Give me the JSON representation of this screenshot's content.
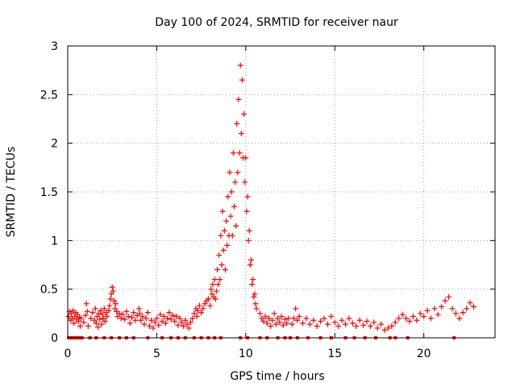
{
  "chart_data": {
    "type": "scatter",
    "title": "Day 100 of 2024, SRMTID for receiver naur",
    "xlabel": "GPS time / hours",
    "ylabel": "SRMTID / TECUs",
    "xlim": [
      0,
      24
    ],
    "ylim": [
      0,
      3
    ],
    "x_ticks": [
      0,
      5,
      10,
      15,
      20
    ],
    "y_ticks": [
      0,
      0.5,
      1,
      1.5,
      2,
      2.5,
      3
    ],
    "x_tick_labels": [
      "0",
      "5",
      "10",
      "15",
      "20"
    ],
    "y_tick_labels": [
      "0",
      "0.5",
      "1",
      "1.5",
      "2",
      "2.5",
      "3"
    ],
    "grid": true,
    "marker": "plus",
    "color": "#ff0000",
    "series": [
      {
        "name": "SRMTID",
        "points": [
          [
            0.05,
            0.22
          ],
          [
            0.1,
            0.27
          ],
          [
            0.15,
            0.18
          ],
          [
            0.2,
            0.25
          ],
          [
            0.25,
            0.2
          ],
          [
            0.3,
            0.28
          ],
          [
            0.35,
            0.15
          ],
          [
            0.4,
            0.22
          ],
          [
            0.45,
            0.26
          ],
          [
            0.5,
            0.19
          ],
          [
            0.55,
            0.24
          ],
          [
            0.6,
            0.17
          ],
          [
            0.65,
            0.21
          ],
          [
            0.7,
            0.12
          ],
          [
            0.75,
            0.2
          ],
          [
            0.9,
            0.16
          ],
          [
            1.0,
            0.23
          ],
          [
            1.05,
            0.35
          ],
          [
            1.1,
            0.27
          ],
          [
            1.15,
            0.12
          ],
          [
            1.3,
            0.2
          ],
          [
            1.4,
            0.26
          ],
          [
            1.5,
            0.18
          ],
          [
            1.55,
            0.3
          ],
          [
            1.6,
            0.15
          ],
          [
            1.65,
            0.22
          ],
          [
            1.7,
            0.11
          ],
          [
            1.75,
            0.25
          ],
          [
            1.8,
            0.19
          ],
          [
            1.85,
            0.28
          ],
          [
            1.9,
            0.14
          ],
          [
            1.95,
            0.24
          ],
          [
            2.0,
            0.2
          ],
          [
            2.05,
            0.3
          ],
          [
            2.1,
            0.17
          ],
          [
            2.15,
            0.26
          ],
          [
            2.2,
            0.22
          ],
          [
            2.3,
            0.28
          ],
          [
            2.35,
            0.33
          ],
          [
            2.4,
            0.4
          ],
          [
            2.45,
            0.45
          ],
          [
            2.5,
            0.52
          ],
          [
            2.55,
            0.48
          ],
          [
            2.6,
            0.38
          ],
          [
            2.65,
            0.3
          ],
          [
            2.7,
            0.35
          ],
          [
            2.75,
            0.27
          ],
          [
            2.8,
            0.22
          ],
          [
            2.9,
            0.25
          ],
          [
            3.0,
            0.2
          ],
          [
            3.1,
            0.24
          ],
          [
            3.2,
            0.19
          ],
          [
            3.3,
            0.27
          ],
          [
            3.4,
            0.22
          ],
          [
            3.5,
            0.15
          ],
          [
            3.6,
            0.21
          ],
          [
            3.7,
            0.26
          ],
          [
            3.8,
            0.18
          ],
          [
            3.9,
            0.23
          ],
          [
            4.0,
            0.3
          ],
          [
            4.05,
            0.25
          ],
          [
            4.1,
            0.18
          ],
          [
            4.2,
            0.22
          ],
          [
            4.3,
            0.14
          ],
          [
            4.4,
            0.2
          ],
          [
            4.5,
            0.26
          ],
          [
            4.6,
            0.12
          ],
          [
            4.7,
            0.18
          ],
          [
            4.8,
            0.1
          ],
          [
            4.9,
            0.16
          ],
          [
            5.0,
            0.2
          ],
          [
            5.1,
            0.13
          ],
          [
            5.2,
            0.24
          ],
          [
            5.3,
            0.17
          ],
          [
            5.4,
            0.22
          ],
          [
            5.5,
            0.15
          ],
          [
            5.6,
            0.2
          ],
          [
            5.7,
            0.26
          ],
          [
            5.8,
            0.19
          ],
          [
            5.9,
            0.23
          ],
          [
            6.0,
            0.17
          ],
          [
            6.1,
            0.22
          ],
          [
            6.2,
            0.13
          ],
          [
            6.3,
            0.2
          ],
          [
            6.4,
            0.16
          ],
          [
            6.5,
            0.12
          ],
          [
            6.6,
            0.18
          ],
          [
            6.7,
            0.14
          ],
          [
            6.8,
            0.1
          ],
          [
            6.9,
            0.16
          ],
          [
            7.0,
            0.2
          ],
          [
            7.1,
            0.25
          ],
          [
            7.2,
            0.3
          ],
          [
            7.25,
            0.22
          ],
          [
            7.3,
            0.28
          ],
          [
            7.4,
            0.33
          ],
          [
            7.5,
            0.26
          ],
          [
            7.6,
            0.3
          ],
          [
            7.7,
            0.35
          ],
          [
            7.8,
            0.38
          ],
          [
            7.9,
            0.4
          ],
          [
            8.0,
            0.33
          ],
          [
            8.05,
            0.5
          ],
          [
            8.1,
            0.45
          ],
          [
            8.15,
            0.55
          ],
          [
            8.2,
            0.42
          ],
          [
            8.25,
            0.6
          ],
          [
            8.3,
            0.4
          ],
          [
            8.35,
            0.48
          ],
          [
            8.4,
            0.7
          ],
          [
            8.45,
            0.55
          ],
          [
            8.5,
            0.85
          ],
          [
            8.55,
            0.6
          ],
          [
            8.6,
            1.05
          ],
          [
            8.65,
            0.75
          ],
          [
            8.7,
            1.3
          ],
          [
            8.75,
            0.9
          ],
          [
            8.8,
            1.1
          ],
          [
            8.85,
            0.7
          ],
          [
            8.9,
            1.2
          ],
          [
            8.95,
            0.95
          ],
          [
            9.0,
            1.45
          ],
          [
            9.05,
            1.05
          ],
          [
            9.1,
            1.7
          ],
          [
            9.15,
            1.25
          ],
          [
            9.2,
            1.5
          ],
          [
            9.25,
            1.05
          ],
          [
            9.3,
            1.9
          ],
          [
            9.35,
            1.35
          ],
          [
            9.4,
            1.6
          ],
          [
            9.45,
            1.15
          ],
          [
            9.5,
            2.2
          ],
          [
            9.55,
            1.7
          ],
          [
            9.6,
            2.45
          ],
          [
            9.65,
            1.9
          ],
          [
            9.7,
            2.8
          ],
          [
            9.75,
            2.1
          ],
          [
            9.8,
            2.65
          ],
          [
            9.85,
            1.85
          ],
          [
            9.9,
            2.3
          ],
          [
            9.95,
            1.6
          ],
          [
            10.0,
            1.85
          ],
          [
            10.05,
            1.3
          ],
          [
            10.1,
            1.45
          ],
          [
            10.15,
            1.0
          ],
          [
            10.2,
            1.1
          ],
          [
            10.25,
            0.75
          ],
          [
            10.3,
            0.8
          ],
          [
            10.35,
            0.55
          ],
          [
            10.4,
            0.6
          ],
          [
            10.45,
            0.42
          ],
          [
            10.5,
            0.45
          ],
          [
            10.55,
            0.35
          ],
          [
            10.6,
            0.3
          ],
          [
            10.8,
            0.25
          ],
          [
            10.9,
            0.2
          ],
          [
            11.0,
            0.17
          ],
          [
            11.1,
            0.22
          ],
          [
            11.2,
            0.15
          ],
          [
            11.3,
            0.2
          ],
          [
            11.4,
            0.12
          ],
          [
            11.5,
            0.18
          ],
          [
            11.6,
            0.25
          ],
          [
            11.7,
            0.14
          ],
          [
            11.8,
            0.2
          ],
          [
            11.9,
            0.16
          ],
          [
            12.0,
            0.22
          ],
          [
            12.1,
            0.13
          ],
          [
            12.2,
            0.19
          ],
          [
            12.3,
            0.15
          ],
          [
            12.4,
            0.2
          ],
          [
            12.6,
            0.14
          ],
          [
            12.7,
            0.2
          ],
          [
            12.8,
            0.3
          ],
          [
            12.9,
            0.18
          ],
          [
            13.0,
            0.22
          ],
          [
            13.2,
            0.15
          ],
          [
            13.4,
            0.2
          ],
          [
            13.6,
            0.14
          ],
          [
            13.8,
            0.18
          ],
          [
            14.0,
            0.12
          ],
          [
            14.2,
            0.17
          ],
          [
            14.4,
            0.2
          ],
          [
            14.6,
            0.14
          ],
          [
            14.8,
            0.22
          ],
          [
            15.0,
            0.16
          ],
          [
            15.2,
            0.12
          ],
          [
            15.4,
            0.18
          ],
          [
            15.6,
            0.14
          ],
          [
            15.8,
            0.2
          ],
          [
            16.0,
            0.15
          ],
          [
            16.2,
            0.12
          ],
          [
            16.4,
            0.18
          ],
          [
            16.6,
            0.13
          ],
          [
            16.8,
            0.17
          ],
          [
            17.0,
            0.12
          ],
          [
            17.2,
            0.16
          ],
          [
            17.4,
            0.1
          ],
          [
            17.6,
            0.14
          ],
          [
            17.8,
            0.08
          ],
          [
            18.0,
            0.1
          ],
          [
            18.2,
            0.12
          ],
          [
            18.4,
            0.16
          ],
          [
            18.6,
            0.2
          ],
          [
            18.8,
            0.24
          ],
          [
            19.0,
            0.2
          ],
          [
            19.2,
            0.17
          ],
          [
            19.4,
            0.22
          ],
          [
            19.6,
            0.18
          ],
          [
            19.8,
            0.25
          ],
          [
            20.0,
            0.22
          ],
          [
            20.2,
            0.28
          ],
          [
            20.4,
            0.2
          ],
          [
            20.6,
            0.3
          ],
          [
            20.8,
            0.24
          ],
          [
            21.0,
            0.32
          ],
          [
            21.2,
            0.38
          ],
          [
            21.4,
            0.42
          ],
          [
            21.6,
            0.3
          ],
          [
            21.8,
            0.25
          ],
          [
            22.0,
            0.2
          ],
          [
            22.2,
            0.26
          ],
          [
            22.4,
            0.3
          ],
          [
            22.6,
            0.36
          ],
          [
            22.8,
            0.32
          ]
        ]
      }
    ],
    "zero_markers_x": [
      0.05,
      0.2,
      0.35,
      0.5,
      0.65,
      0.8,
      1.25,
      1.6,
      2.05,
      2.45,
      2.9,
      3.3,
      3.7,
      4.5,
      5.3,
      5.8,
      6.2,
      6.6,
      7.1,
      7.5,
      7.9,
      8.25,
      8.6,
      9.7,
      10.1,
      10.8,
      11.2,
      11.8,
      12.2,
      12.5,
      12.9,
      13.5,
      14.2,
      14.8,
      15.6,
      16.1,
      16.7,
      17.3,
      18.1,
      18.4,
      19.1,
      21.7
    ]
  }
}
